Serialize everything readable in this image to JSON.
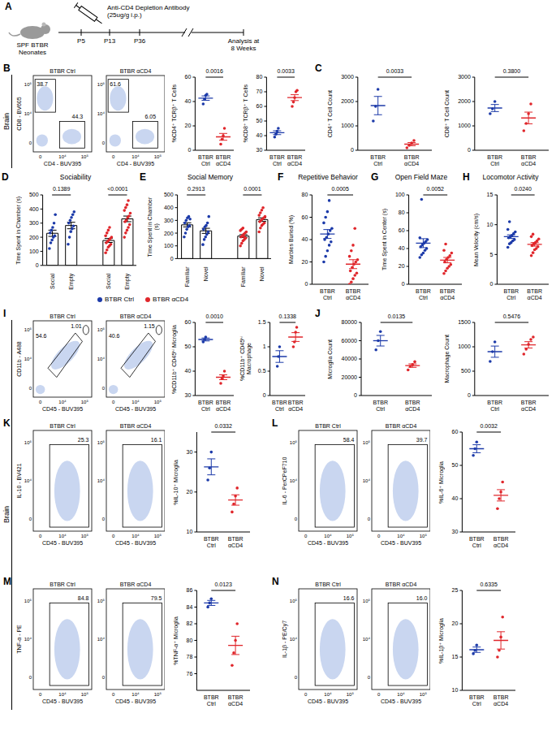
{
  "side_labels": [
    "Brain",
    "Brain"
  ],
  "diagram": {
    "panel": "A",
    "antibody": [
      "Anti-CD4 Depletion Antibody",
      "(25ug/g i.p.)"
    ],
    "mice": [
      "SPF BTBR",
      "Neonates"
    ],
    "timepoints": [
      "P5",
      "P13",
      "P36"
    ],
    "endpoint": [
      "Analysis at",
      "8 Weeks"
    ]
  },
  "flow_plots": [
    {
      "panel": "B",
      "x_label": "CD4 - BUV395",
      "y_label": "CD8 - BV605",
      "x_ticks": [
        "0",
        "10⁴",
        "10⁵"
      ],
      "y_ticks": [
        "0",
        "10⁴",
        "10⁵"
      ],
      "plots": [
        {
          "title": "BTBR Ctrl",
          "gates": [
            "38.7",
            "44.3"
          ]
        },
        {
          "title": "BTBR αCD4",
          "gates": [
            "61.6",
            "6.05"
          ]
        }
      ]
    },
    {
      "panel": "I",
      "x_label": "CD45 - BUV395",
      "y_label": "CD11b - A488",
      "x_ticks": [
        "0",
        "10⁴",
        "10⁵"
      ],
      "y_ticks": [
        "0",
        "10⁴",
        "10⁵"
      ],
      "plots": [
        {
          "title": "BTBR Ctrl",
          "gates": [
            "54.6",
            "1.01"
          ]
        },
        {
          "title": "BTBR αCD4",
          "gates": [
            "40.6",
            "1.15"
          ]
        }
      ]
    },
    {
      "panel": "K",
      "x_label": "CD45 - BUV395",
      "y_label": "IL-10 - BV421",
      "x_ticks": [
        "0",
        "10⁴",
        "10⁵"
      ],
      "y_ticks": [
        "0",
        "10⁴",
        "10⁵"
      ],
      "plots": [
        {
          "title": "BTBR Ctrl",
          "gates": [
            "25.3"
          ]
        },
        {
          "title": "BTBR αCD4",
          "gates": [
            "16.1"
          ]
        }
      ]
    },
    {
      "panel": "L",
      "x_label": "CD45 - BUV395",
      "y_label": "IL-6 - PerCPeF710",
      "x_ticks": [
        "0",
        "10⁴",
        "10⁵"
      ],
      "y_ticks": [
        "0",
        "10⁴",
        "10⁵"
      ],
      "plots": [
        {
          "title": "BTBR Ctrl",
          "gates": [
            "58.4"
          ]
        },
        {
          "title": "BTBR αCD4",
          "gates": [
            "39.7"
          ]
        }
      ]
    },
    {
      "panel": "M",
      "x_label": "CD45 - BUV395",
      "y_label": "TNF-α - PE",
      "x_ticks": [
        "0",
        "10⁴",
        "10⁵"
      ],
      "y_ticks": [
        "0",
        "10⁴",
        "10⁵"
      ],
      "plots": [
        {
          "title": "BTBR Ctrl",
          "gates": [
            "84.8"
          ]
        },
        {
          "title": "BTBR αCD4",
          "gates": [
            "79.5"
          ]
        }
      ]
    },
    {
      "panel": "N",
      "x_label": "CD45 - BUV395",
      "y_label": "IL-1β - PE/Cy7",
      "x_ticks": [
        "0",
        "10⁴",
        "10⁵"
      ],
      "y_ticks": [
        "0",
        "10⁴",
        "10⁵"
      ],
      "plots": [
        {
          "title": "BTBR Ctrl",
          "gates": [
            "16.6"
          ]
        },
        {
          "title": "BTBR αCD4",
          "gates": [
            "16.0"
          ]
        }
      ]
    }
  ],
  "chart_data": [
    {
      "type": "scatter",
      "y_label": "%CD4⁺ TCRβ⁺ T Cells",
      "categories": [
        "BTBR Ctrl",
        "BTBR αCD4"
      ],
      "colors": [
        "#1c3aa9",
        "#e0262b"
      ],
      "values": [
        [
          38,
          42,
          45,
          46
        ],
        [
          5,
          9,
          12,
          18
        ]
      ],
      "means": [
        42.8,
        11
      ],
      "errors": [
        1.8,
        2.8
      ],
      "p_value": "0.0016",
      "ylim": [
        0,
        60
      ],
      "yticks": [
        0,
        20,
        40,
        60
      ]
    },
    {
      "type": "scatter",
      "y_label": "%CD8⁺ TCRβ⁺ T Cells",
      "categories": [
        "BTBR Ctrl",
        "BTBR αCD4"
      ],
      "colors": [
        "#1c3aa9",
        "#e0262b"
      ],
      "values": [
        [
          39,
          41,
          43,
          45
        ],
        [
          60,
          63,
          66,
          70,
          71
        ]
      ],
      "means": [
        42,
        66
      ],
      "errors": [
        1.3,
        2
      ],
      "p_value": "0.0033",
      "ylim": [
        30,
        80
      ],
      "yticks": [
        30,
        40,
        50,
        60,
        70,
        80
      ]
    },
    {
      "panel": "C",
      "type": "scatter",
      "y_label": "CD4⁺ T Cell Count",
      "categories": [
        "BTBR Ctrl",
        "BTBR αCD4"
      ],
      "colors": [
        "#1c3aa9",
        "#e0262b"
      ],
      "values": [
        [
          1200,
          1800,
          2500
        ],
        [
          100,
          200,
          300,
          400
        ]
      ],
      "means": [
        1833,
        250
      ],
      "errors": [
        375,
        65
      ],
      "p_value": "0.0033",
      "ylim": [
        0,
        3000
      ],
      "yticks": [
        0,
        1000,
        2000,
        3000
      ]
    },
    {
      "type": "scatter",
      "y_label": "CD8⁺ T Cell Count",
      "categories": [
        "BTBR Ctrl",
        "BTBR αCD4"
      ],
      "colors": [
        "#1c3aa9",
        "#e0262b"
      ],
      "values": [
        [
          1500,
          1700,
          2000
        ],
        [
          800,
          1100,
          1500,
          1900
        ]
      ],
      "means": [
        1733,
        1325
      ],
      "errors": [
        145,
        240
      ],
      "p_value": "0.3800",
      "ylim": [
        0,
        3000
      ],
      "yticks": [
        0,
        1000,
        2000,
        3000
      ]
    },
    {
      "panel": "D",
      "type": "bar",
      "title": "Sociability",
      "y_label": "Time Spent in Chamber (s)",
      "categories": [
        "Social",
        "Empty"
      ],
      "legend": "bottom",
      "ylim": [
        0,
        500
      ],
      "yticks": [
        0,
        100,
        200,
        300,
        400,
        500
      ],
      "series": [
        {
          "name": "BTBR Ctrl",
          "color": "#1c3aa9",
          "values": [
            228,
            283
          ],
          "errors": [
            22,
            23
          ],
          "p_value": "0.1389",
          "points": [
            [
              120,
              160,
              180,
              200,
              210,
              230,
              250,
              270,
              300,
              360
            ],
            [
              150,
              200,
              240,
              260,
              280,
              300,
              320,
              340,
              360,
              380
            ]
          ]
        },
        {
          "name": "BTBR αCD4",
          "color": "#e0262b",
          "values": [
            177,
            330
          ],
          "errors": [
            14,
            20
          ],
          "p_value": "<0.0001",
          "points": [
            [
              90,
              110,
              130,
              140,
              150,
              160,
              170,
              180,
              190,
              200,
              210,
              230,
              250,
              270
            ],
            [
              200,
              230,
              250,
              270,
              290,
              310,
              320,
              340,
              350,
              370,
              390,
              410,
              430,
              460
            ]
          ]
        }
      ]
    },
    {
      "panel": "E",
      "type": "bar",
      "title": "Social Memory",
      "y_label": "Time Spent in Chamber (s)",
      "categories": [
        "Familiar",
        "Novel"
      ],
      "ylim": [
        0,
        500
      ],
      "yticks": [
        0,
        100,
        200,
        300,
        400,
        500
      ],
      "series": [
        {
          "color": "#1c3aa9",
          "values": [
            265,
            218
          ],
          "errors": [
            16,
            20
          ],
          "p_value": "0.2913",
          "points": [
            [
              170,
              200,
              230,
              250,
              260,
              280,
              300,
              320,
              330,
              310
            ],
            [
              110,
              150,
              170,
              190,
              210,
              230,
              250,
              260,
              280,
              330
            ]
          ]
        },
        {
          "color": "#e0262b",
          "values": [
            177,
            306
          ],
          "errors": [
            11,
            14
          ],
          "p_value": "0.0001",
          "points": [
            [
              100,
              120,
              140,
              150,
              160,
              170,
              180,
              190,
              200,
              210,
              220,
              230,
              240,
              170
            ],
            [
              210,
              240,
              260,
              270,
              280,
              290,
              300,
              310,
              320,
              330,
              340,
              360,
              380,
              400
            ]
          ]
        }
      ]
    },
    {
      "panel": "F",
      "type": "scatter",
      "title": "Repetitive Behavior",
      "y_label": "Marbles Buried (%)",
      "categories": [
        "BTBR Ctrl",
        "BTBR αCD4"
      ],
      "colors": [
        "#1c3aa9",
        "#e0262b"
      ],
      "values": [
        [
          20,
          25,
          30,
          35,
          38,
          40,
          42,
          45,
          48,
          50,
          55,
          60,
          65,
          75
        ],
        [
          0,
          2,
          5,
          8,
          10,
          12,
          15,
          18,
          20,
          22,
          25,
          30,
          35,
          50
        ]
      ],
      "means": [
        45,
        18
      ],
      "errors": [
        4,
        4
      ],
      "p_value": "0.0005",
      "ylim": [
        0,
        80
      ],
      "yticks": [
        0,
        20,
        40,
        60,
        80
      ]
    },
    {
      "panel": "G",
      "type": "scatter",
      "title": "Open Field Maze",
      "y_label": "Time Spent in Center (s)",
      "categories": [
        "BTBR Ctrl",
        "BTBR αCD4"
      ],
      "colors": [
        "#1c3aa9",
        "#e0262b"
      ],
      "values": [
        [
          30,
          33,
          35,
          38,
          40,
          42,
          44,
          46,
          48,
          50,
          52,
          95
        ],
        [
          12,
          15,
          18,
          20,
          22,
          25,
          28,
          30,
          32,
          35,
          38,
          45
        ]
      ],
      "means": [
        46,
        27
      ],
      "errors": [
        5,
        3
      ],
      "p_value": "0.0052",
      "ylim": [
        0,
        100
      ],
      "yticks": [
        0,
        20,
        40,
        60,
        80,
        100
      ]
    },
    {
      "panel": "H",
      "type": "scatter",
      "title": "Locomotor Activity",
      "y_label": "Mean Velocity (cm/s)",
      "categories": [
        "BTBR Ctrl",
        "BTBR αCD4"
      ],
      "colors": [
        "#1c3aa9",
        "#e0262b"
      ],
      "values": [
        [
          6.2,
          6.8,
          7.0,
          7.3,
          7.5,
          7.8,
          8.0,
          8.2,
          8.5,
          8.8,
          9.2,
          10.5
        ],
        [
          4.8,
          5.3,
          5.8,
          6.0,
          6.3,
          6.5,
          6.8,
          7.0,
          7.3,
          7.6,
          8.0,
          8.4
        ]
      ],
      "means": [
        8,
        6.7
      ],
      "errors": [
        0.3,
        0.3
      ],
      "p_value": "0.0240",
      "ylim": [
        0,
        15
      ],
      "yticks": [
        0,
        5,
        10,
        15
      ]
    },
    {
      "type": "scatter",
      "y_label": "%CD11b⁺ CD45ʰⁱ Microglia",
      "categories": [
        "BTBR Ctrl",
        "BTBR αCD4"
      ],
      "colors": [
        "#1c3aa9",
        "#e0262b"
      ],
      "values": [
        [
          52,
          53,
          54
        ],
        [
          35,
          37,
          38,
          40
        ]
      ],
      "means": [
        53,
        37.5
      ],
      "errors": [
        0.6,
        1
      ],
      "p_value": "0.0010",
      "ylim": [
        30,
        60
      ],
      "yticks": [
        30,
        40,
        50,
        60
      ]
    },
    {
      "type": "scatter",
      "y_label": "%CD11b⁺ CD45ʰⁱ Macrophage",
      "categories": [
        "BTBR Ctrl",
        "BTBR αCD4"
      ],
      "colors": [
        "#1c3aa9",
        "#e0262b"
      ],
      "values": [
        [
          0.6,
          0.8,
          1.0
        ],
        [
          1.0,
          1.1,
          1.3,
          1.4
        ]
      ],
      "means": [
        0.8,
        1.2
      ],
      "errors": [
        0.12,
        0.09
      ],
      "p_value": "0.1338",
      "ylim": [
        0,
        1.5
      ],
      "yticks": [
        0,
        0.5,
        1,
        1.5
      ]
    },
    {
      "panel": "J",
      "type": "scatter",
      "y_label": "Microglia Count",
      "categories": [
        "BTBR Ctrl",
        "BTBR αCD4"
      ],
      "colors": [
        "#1c3aa9",
        "#e0262b"
      ],
      "values": [
        [
          50000,
          60000,
          70000
        ],
        [
          28000,
          32000,
          34000,
          37000
        ]
      ],
      "means": [
        60000,
        32750
      ],
      "errors": [
        5800,
        1900
      ],
      "p_value": "0.0135",
      "ylim": [
        0,
        80000
      ],
      "yticks": [
        0,
        20000,
        40000,
        60000,
        80000
      ]
    },
    {
      "type": "scatter",
      "y_label": "Macrophage Count",
      "categories": [
        "BTBR Ctrl",
        "BTBR αCD4"
      ],
      "colors": [
        "#1c3aa9",
        "#e0262b"
      ],
      "values": [
        [
          700,
          900,
          1100
        ],
        [
          850,
          950,
          1050,
          1150,
          1200
        ]
      ],
      "means": [
        900,
        1040
      ],
      "errors": [
        115,
        65
      ],
      "p_value": "0.5476",
      "ylim": [
        0,
        1500
      ],
      "yticks": [
        0,
        500,
        1000,
        1500
      ]
    },
    {
      "type": "scatter",
      "y_label": "%IL-10⁺ Microglia",
      "categories": [
        "BTBR Ctrl",
        "BTBR αCD4"
      ],
      "colors": [
        "#1c3aa9",
        "#e0262b"
      ],
      "values": [
        [
          23,
          26,
          30
        ],
        [
          15,
          17,
          19,
          21
        ]
      ],
      "means": [
        26.3,
        18
      ],
      "errors": [
        2,
        1.3
      ],
      "p_value": "0.0332",
      "ylim": [
        10,
        35
      ],
      "yticks": [
        10,
        20,
        30
      ]
    },
    {
      "type": "scatter",
      "y_label": "%IL-6⁺ Microglia",
      "categories": [
        "BTBR Ctrl",
        "BTBR αCD4"
      ],
      "colors": [
        "#1c3aa9",
        "#e0262b"
      ],
      "values": [
        [
          53,
          55,
          57
        ],
        [
          37,
          40,
          42,
          45
        ]
      ],
      "means": [
        55,
        41
      ],
      "errors": [
        1.2,
        1.7
      ],
      "p_value": "0.0032",
      "ylim": [
        30,
        60
      ],
      "yticks": [
        30,
        40,
        50,
        60
      ]
    },
    {
      "type": "scatter",
      "y_label": "%TNF-α⁺ Microglia",
      "categories": [
        "BTBR Ctrl",
        "BTBR αCD4"
      ],
      "colors": [
        "#1c3aa9",
        "#e0262b"
      ],
      "values": [
        [
          84,
          84.5,
          85
        ],
        [
          77,
          78.5,
          80,
          82
        ]
      ],
      "means": [
        84.5,
        79.4
      ],
      "errors": [
        0.3,
        1.1
      ],
      "p_value": "0.0123",
      "ylim": [
        74,
        86
      ],
      "yticks": [
        76,
        78,
        80,
        82,
        84,
        86
      ]
    },
    {
      "type": "scatter",
      "y_label": "%IL-1β⁺ Microglia",
      "categories": [
        "BTBR Ctrl",
        "BTBR αCD4"
      ],
      "colors": [
        "#1c3aa9",
        "#e0262b"
      ],
      "values": [
        [
          15.5,
          16,
          16.8
        ],
        [
          15,
          16,
          18,
          21
        ]
      ],
      "means": [
        16.1,
        17.5
      ],
      "errors": [
        0.4,
        1.3
      ],
      "p_value": "0.6335",
      "ylim": [
        10,
        25
      ],
      "yticks": [
        10,
        15,
        20,
        25
      ]
    }
  ]
}
